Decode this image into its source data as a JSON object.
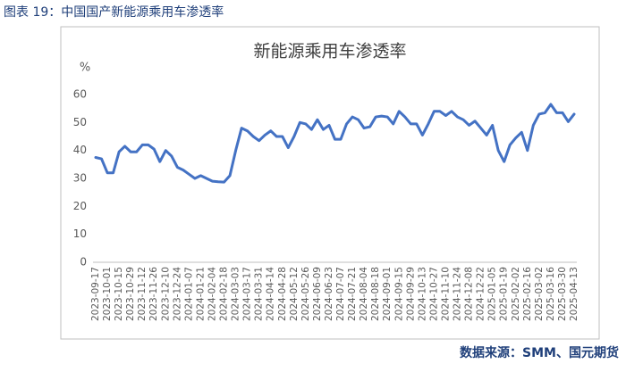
{
  "caption": "图表 19：中国国产新能源乘用车渗透率",
  "source": "数据来源：SMM、国元期货",
  "chart_data": {
    "type": "line",
    "title": "新能源乘用车渗透率",
    "y_label": "%",
    "categories": [
      "2023-09-17",
      null,
      "2023-10-01",
      null,
      "2023-10-15",
      null,
      "2023-10-29",
      null,
      "2023-11-12",
      null,
      "2023-11-26",
      null,
      "2023-12-10",
      null,
      "2023-12-24",
      null,
      "2024-01-07",
      null,
      "2024-01-21",
      null,
      "2024-02-04",
      null,
      "2024-02-18",
      null,
      "2024-03-03",
      null,
      "2024-03-17",
      null,
      "2024-03-31",
      null,
      "2024-04-14",
      null,
      "2024-04-28",
      null,
      "2024-05-12",
      null,
      "2024-05-26",
      null,
      "2024-06-09",
      null,
      "2024-06-23",
      null,
      "2024-07-07",
      null,
      "2024-07-21",
      null,
      "2024-08-04",
      null,
      "2024-08-18",
      null,
      "2024-09-01",
      null,
      "2024-09-15",
      null,
      "2024-09-29",
      null,
      "2024-10-13",
      null,
      "2024-10-27",
      null,
      "2024-11-10",
      null,
      "2024-11-24",
      null,
      "2024-12-08",
      null,
      "2024-12-22",
      null,
      "2025-01-05",
      null,
      "2025-01-19",
      null,
      "2025-02-02",
      null,
      "2025-02-16",
      null,
      "2025-03-02",
      null,
      "2025-03-16",
      null,
      "2025-03-30",
      null,
      "2025-04-13"
    ],
    "values": [
      37.5,
      37,
      32,
      32,
      39.5,
      41.5,
      39.5,
      39.5,
      42,
      42,
      40.5,
      36,
      40,
      38,
      34,
      33,
      31.5,
      30,
      31,
      30,
      29,
      28.8,
      28.7,
      31,
      40,
      48,
      47,
      45,
      43.5,
      45.5,
      47,
      45,
      45,
      41,
      45,
      50,
      49.5,
      47.5,
      51,
      47.5,
      49,
      44,
      44,
      49.5,
      52,
      51,
      48,
      48.5,
      52,
      52.3,
      52,
      49.5,
      54,
      52,
      49.5,
      49.5,
      45.5,
      49.5,
      54,
      54,
      52.5,
      54,
      52,
      51,
      49,
      50.5,
      48,
      45.5,
      49,
      40,
      36,
      42,
      44.5,
      46.5,
      40,
      49,
      53,
      53.5,
      56.5,
      53.5,
      53.5,
      50.3,
      53
    ],
    "color": "#4472c4",
    "ylim": [
      0,
      60
    ],
    "yticks": [
      0,
      10,
      20,
      30,
      40,
      50,
      60
    ],
    "grid": false
  }
}
